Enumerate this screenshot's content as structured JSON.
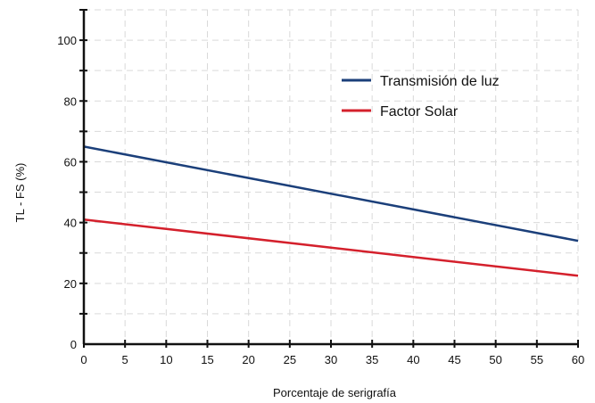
{
  "chart_data": {
    "type": "line",
    "xlabel": "Porcentaje de serigrafía",
    "ylabel": "TL - FS (%)",
    "xlim": [
      0,
      60
    ],
    "ylim": [
      0,
      110
    ],
    "x_ticks": [
      0,
      5,
      10,
      15,
      20,
      25,
      30,
      35,
      40,
      45,
      50,
      55,
      60
    ],
    "y_ticks": [
      0,
      20,
      40,
      60,
      80,
      100
    ],
    "grid": true,
    "legend_position": "top-right",
    "series": [
      {
        "name": "Transmisión de luz",
        "color": "#1b3f7a",
        "x": [
          0,
          60
        ],
        "y": [
          65,
          34
        ]
      },
      {
        "name": "Factor Solar",
        "color": "#d4202c",
        "x": [
          0,
          60
        ],
        "y": [
          41,
          22.5
        ]
      }
    ]
  }
}
